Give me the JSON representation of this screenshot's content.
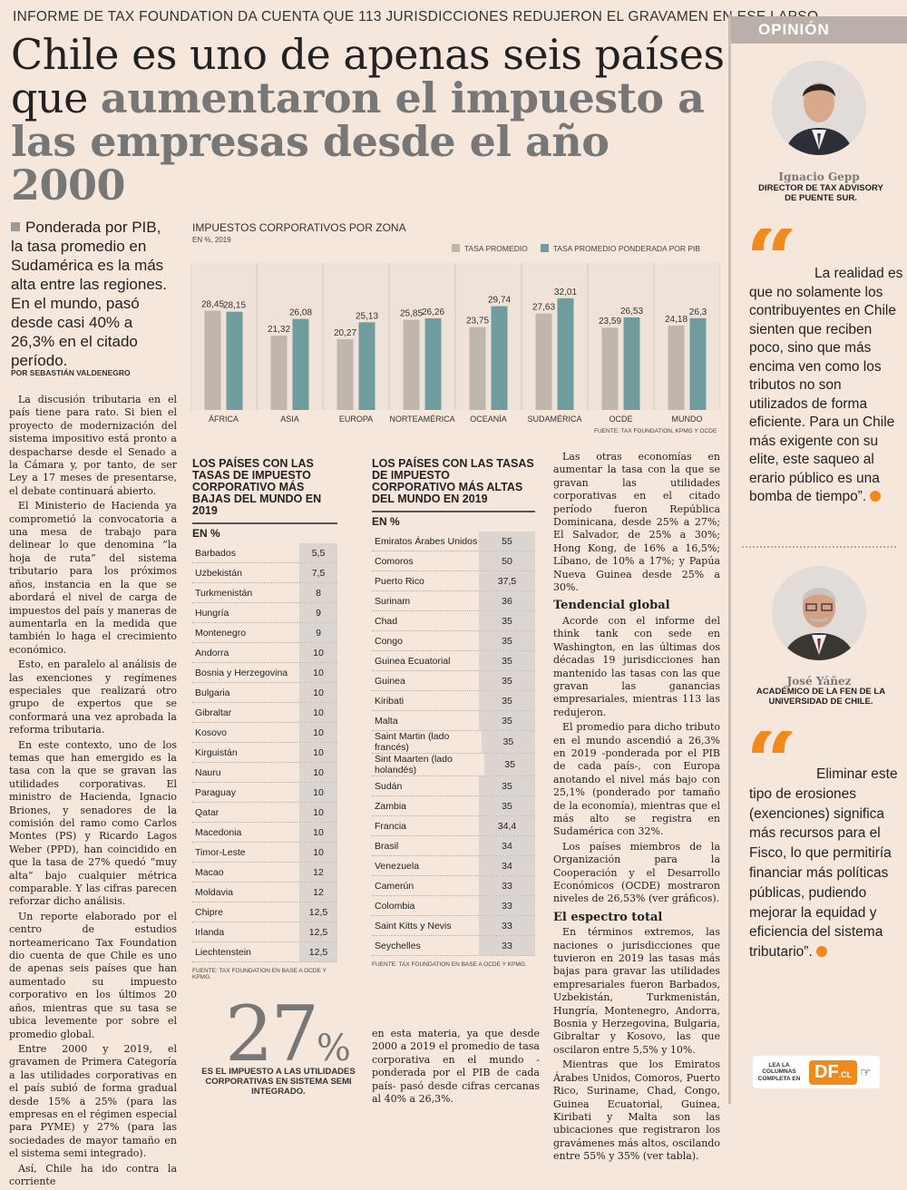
{
  "kicker": "INFORME DE TAX FOUNDATION DA CUENTA QUE 113 JURISDICCIONES REDUJERON EL GRAVAMEN EN ESE LAPSO",
  "headline": {
    "part1": "Chile es uno de apenas seis países que ",
    "part2": "aumentaron el impuesto a las empresas desde el año 2000"
  },
  "lead": "Ponderada por PIB, la tasa promedio en Sudamérica es la más alta entre las regiones. En el mundo, pasó desde casi 40% a 26,3% en el citado período.",
  "byline": "POR SEBASTIÁN VALDENEGRO",
  "body_left": [
    "La discusión tributaria en el país tiene para rato. Si bien el proyecto de modernización del sistema impositivo está pronto a despacharse desde el Senado a la Cámara y, por tanto, de ser Ley a 17 meses de presentarse, el debate continuará abierto.",
    "El Ministerio de Hacienda ya comprometió la convocatoria a una mesa de trabajo para delinear lo que denomina “la hoja de ruta” del sistema tributario para los próximos años, instancia en la que se abordará el nivel de carga de impuestos del país y maneras de aumentarla en la medida que también lo haga el crecimiento económico.",
    "Esto, en paralelo al análisis de las exenciones y regímenes especiales que realizará otro grupo de expertos que se conformará una vez aprobada la reforma tributaria.",
    "En este contexto, uno de los temas que han emergido es la tasa con la que se gravan las utilidades corporativas. El ministro de Hacienda, Ignacio Briones, y senadores de la comisión del ramo como Carlos Montes (PS) y Ricardo Lagos Weber (PPD), han coincidido en que la tasa de 27% quedó “muy alta” bajo cualquier métrica comparable. Y las cifras parecen reforzar dicho análisis.",
    "Un reporte elaborado por el centro de estudios norteamericano Tax Foundation dio cuenta de que Chile es uno de apenas seis países que han aumentado su impuesto corporativo en los últimos 20 años, mientras que su tasa se ubica levemente por sobre el promedio global.",
    "Entre 2000 y 2019, el gravamen de Primera Categoría a las utilidades corporativas en el país subió de forma gradual desde 15% a 25% (para las empresas en el régimen especial para PYME) y 27% (para las sociedades de mayor tamaño en el sistema semi integrado).",
    "Así, Chile ha ido contra la corriente"
  ],
  "body_bottom_mid": "en esta materia, ya que desde 2000 a 2019 el promedio de tasa corporativa en el mundo -ponderada por el PIB de cada país- pasó desde cifras cercanas al 40% a 26,3%.",
  "body_right": {
    "p1": "Las otras economías en aumentar la tasa con la que se gravan las utilidades corporativas en el citado período fueron República Dominicana, desde 25% a 27%; El Salvador, de 25% a 30%; Hong Kong, de 16% a 16,5%; Líbano, de 10% a 17%; y Papúa Nueva Guinea desde 25% a 30%.",
    "h1": "Tendencial global",
    "p2": "Acorde con el informe del think tank con sede en Washington, en las últimas dos décadas 19 jurisdicciones han mantenido las tasas con las que gravan las ganancias empresariales, mientras 113 las redujeron.",
    "p3": "El promedio para dicho tributo en el mundo ascendió a 26,3% en 2019 -ponderada por el PIB de cada país-, con Europa anotando el nivel más bajo con 25,1% (ponderado por tamaño de la economía), mientras que el más alto se registra en Sudamérica con 32%.",
    "p4": "Los países miembros de la Organización para la Cooperación y el Desarrollo Económicos (OCDE) mostraron niveles de 26,53% (ver gráficos).",
    "h2": "El espectro total",
    "p5": "En términos extremos, las naciones o jurisdicciones que tuvieron en 2019 las tasas más bajas para gravar las utilidades empresariales fueron Barbados, Uzbekistán, Turkmenistán, Hungría, Montenegro, Andorra, Bosnia y Herzegovina, Bulgaria, Gibraltar y Kosovo, las que oscilaron entre 5,5% y 10%.",
    "p6": "Mientras que los Emiratos Árabes Unidos, Comoros, Puerto Rico, Suriname, Chad, Congo, Guinea Ecuatorial, Guinea, Kiribati y Malta son las ubicaciones que registraron los gravámenes más altos, oscilando entre 55% y 35% (ver tabla)."
  },
  "chart_data": {
    "type": "bar",
    "title": "IMPUESTOS CORPORATIVOS POR ZONA",
    "subtitle": "EN %, 2019",
    "categories": [
      "ÁFRICA",
      "ASIA",
      "EUROPA",
      "NORTEAMÉRICA",
      "OCEANÍA",
      "SUDAMÉRICA",
      "OCDE",
      "MUNDO"
    ],
    "series": [
      {
        "name": "TASA PROMEDIO",
        "color": "#bfb6ae",
        "values": [
          28.45,
          21.32,
          20.27,
          25.85,
          23.75,
          27.63,
          23.59,
          24.18
        ],
        "labels": [
          "28,45",
          "21,32",
          "20,27",
          "25,85",
          "23,75",
          "27,63",
          "23,59",
          "24,18"
        ]
      },
      {
        "name": "TASA PROMEDIO PONDERADA POR PIB",
        "color": "#6f9d9d",
        "values": [
          28.15,
          26.08,
          25.13,
          26.26,
          29.74,
          32.01,
          26.53,
          26.3
        ],
        "labels": [
          "28,15",
          "26,08",
          "25,13",
          "26,26",
          "29,74",
          "32,01",
          "26,53",
          "26,3"
        ]
      }
    ],
    "source": "FUENTE: TAX FOUNDATION, KPMG Y OCDE",
    "grid": true,
    "legend": "top-right"
  },
  "table_low": {
    "title": "LOS PAÍSES CON LAS TASAS DE IMPUESTO CORPORATIVO MÁS BAJAS DEL MUNDO EN 2019",
    "unit": "EN %",
    "rows": [
      {
        "name": "Barbados",
        "value": "5,5"
      },
      {
        "name": "Uzbekistán",
        "value": "7,5"
      },
      {
        "name": "Turkmenistán",
        "value": "8"
      },
      {
        "name": "Hungría",
        "value": "9"
      },
      {
        "name": "Montenegro",
        "value": "9"
      },
      {
        "name": "Andorra",
        "value": "10"
      },
      {
        "name": "Bosnia y Herzegovina",
        "value": "10"
      },
      {
        "name": "Bulgaria",
        "value": "10"
      },
      {
        "name": "Gibraltar",
        "value": "10"
      },
      {
        "name": "Kosovo",
        "value": "10"
      },
      {
        "name": "Kirguistán",
        "value": "10"
      },
      {
        "name": "Nauru",
        "value": "10"
      },
      {
        "name": "Paraguay",
        "value": "10"
      },
      {
        "name": "Qatar",
        "value": "10"
      },
      {
        "name": "Macedonia",
        "value": "10"
      },
      {
        "name": "Timor-Leste",
        "value": "10"
      },
      {
        "name": "Macao",
        "value": "12"
      },
      {
        "name": "Moldavia",
        "value": "12"
      },
      {
        "name": "Chipre",
        "value": "12,5"
      },
      {
        "name": "Irlanda",
        "value": "12,5"
      },
      {
        "name": "Liechtenstein",
        "value": "12,5"
      }
    ],
    "source": "FUENTE: TAX FOUNDATION EN BASE A OCDE Y KPMG."
  },
  "table_high": {
    "title": "LOS PAÍSES CON LAS TASAS DE IMPUESTO CORPORATIVO MÁS ALTAS DEL MUNDO EN 2019",
    "unit": "EN %",
    "rows": [
      {
        "name": "Emiratos Árabes Unidos",
        "value": "55"
      },
      {
        "name": "Comoros",
        "value": "50"
      },
      {
        "name": "Puerto Rico",
        "value": "37,5"
      },
      {
        "name": "Surinam",
        "value": "36"
      },
      {
        "name": "Chad",
        "value": "35"
      },
      {
        "name": "Congo",
        "value": "35"
      },
      {
        "name": "Guinea Ecuatorial",
        "value": "35"
      },
      {
        "name": "Guinea",
        "value": "35"
      },
      {
        "name": "Kiribati",
        "value": "35"
      },
      {
        "name": "Malta",
        "value": "35"
      },
      {
        "name": "Saint Martin (lado francés)",
        "value": "35"
      },
      {
        "name": "Sint Maarten (lado holandés)",
        "value": "35"
      },
      {
        "name": "Sudán",
        "value": "35"
      },
      {
        "name": "Zambia",
        "value": "35"
      },
      {
        "name": "Francia",
        "value": "34,4"
      },
      {
        "name": "Brasil",
        "value": "34"
      },
      {
        "name": "Venezuela",
        "value": "34"
      },
      {
        "name": "Camerún",
        "value": "33"
      },
      {
        "name": "Colombia",
        "value": "33"
      },
      {
        "name": "Saint Kitts y Nevis",
        "value": "33"
      },
      {
        "name": "Seychelles",
        "value": "33"
      }
    ],
    "source": "FUENTE: TAX FOUNDATION EN BASE A OCDE Y KPMG."
  },
  "highlight": {
    "number": "27",
    "symbol": "%",
    "caption": "ES EL IMPUESTO A LAS UTILIDADES CORPORATIVAS EN SISTEMA SEMI INTEGRADO."
  },
  "sidebar": {
    "label": "OPINIÓN",
    "person1": {
      "name": "Ignacio Gepp",
      "role": "DIRECTOR DE TAX ADVISORY DE PUENTE SUR."
    },
    "quote1": "La realidad es que no solamente los contribuyentes en Chile sienten que reciben poco, sino que más encima ven como los tributos no son utilizados de forma eficiente. Para un Chile más exigente con su elite, este saqueo al erario público es una bomba de tiempo”.",
    "person2": {
      "name": "José Yáñez",
      "role": "ACADÉMICO DE LA FEN DE LA UNIVERSIDAD DE CHILE."
    },
    "quote2": "Eliminar este tipo de erosiones (exenciones) significa más recursos para el Fisco, lo que permitiría financiar más políticas públicas, pudiendo mejorar la equidad y eficiencia del sistema tributario”.",
    "cta": {
      "text": "LEA LA COLUMNAS COMPLETA EN",
      "logo": "DF",
      "logo_suffix": ".CL"
    },
    "accent": "#f08a1c"
  }
}
